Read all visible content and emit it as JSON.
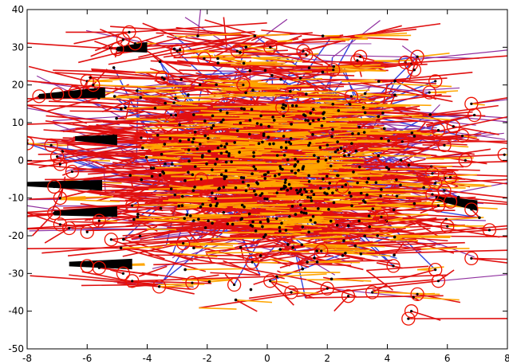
{
  "chart_data": {
    "type": "scatter",
    "title": "",
    "xlabel": "",
    "ylabel": "",
    "xlim": [
      -8,
      8
    ],
    "ylim": [
      -50,
      40
    ],
    "x_ticks": [
      -8,
      -6,
      -4,
      -2,
      0,
      2,
      4,
      6,
      8
    ],
    "y_ticks": [
      -50,
      -40,
      -30,
      -20,
      -10,
      0,
      10,
      20,
      30,
      40
    ],
    "x_tick_labels": [
      "-8",
      "-6",
      "-4",
      "-2",
      "0",
      "2",
      "4",
      "6",
      "8"
    ],
    "y_tick_labels": [
      "-50",
      "-40",
      "-30",
      "-20",
      "-10",
      "0",
      "10",
      "20",
      "30",
      "40"
    ],
    "grid": false,
    "legend": "none",
    "colors": {
      "blue_lines": "#3344dd",
      "red_lines": "#e01010",
      "orange_arrows": "#ffa500",
      "purple_lines": "#9030a0",
      "markers": "#000000",
      "circles": "#ee1100"
    },
    "series": [
      {
        "role": "circled_points",
        "points": [
          [
            -4.6,
            34
          ],
          [
            -4.8,
            32
          ],
          [
            -5.0,
            29.5
          ],
          [
            -4.4,
            31
          ],
          [
            -3.0,
            29
          ],
          [
            -2.1,
            27
          ],
          [
            -1.0,
            29
          ],
          [
            0.1,
            30
          ],
          [
            1.2,
            29
          ],
          [
            1.3,
            28
          ],
          [
            3.1,
            27.5
          ],
          [
            3.0,
            26.5
          ],
          [
            4.6,
            26
          ],
          [
            4.8,
            25.5
          ],
          [
            5.0,
            27.5
          ],
          [
            4.9,
            24
          ],
          [
            -7.6,
            17
          ],
          [
            -7.0,
            17.5
          ],
          [
            -6.4,
            18
          ],
          [
            -6.0,
            21
          ],
          [
            -5.8,
            20
          ],
          [
            5.6,
            21
          ],
          [
            5.4,
            18
          ],
          [
            6.8,
            15
          ],
          [
            6.9,
            12
          ],
          [
            6.2,
            9
          ],
          [
            5.7,
            8
          ],
          [
            6.5,
            6.5
          ],
          [
            5.9,
            4
          ],
          [
            6.6,
            0
          ],
          [
            7.9,
            1.5
          ],
          [
            -8.0,
            4.5
          ],
          [
            -7.2,
            4
          ],
          [
            -7.0,
            1
          ],
          [
            -6.9,
            -1
          ],
          [
            -6.5,
            -3
          ],
          [
            -7.1,
            -7
          ],
          [
            -6.9,
            -10
          ],
          [
            -7.1,
            -14
          ],
          [
            -6.9,
            -17
          ],
          [
            -6.6,
            -18
          ],
          [
            -6.0,
            -19
          ],
          [
            -5.6,
            -16
          ],
          [
            -5.2,
            -21
          ],
          [
            -6.0,
            -28
          ],
          [
            -5.6,
            -28.5
          ],
          [
            -4.8,
            -30
          ],
          [
            -4.5,
            -32
          ],
          [
            -3.6,
            -33.5
          ],
          [
            -2.5,
            -32.5
          ],
          [
            -1.1,
            -33
          ],
          [
            0.1,
            -32
          ],
          [
            0.8,
            -35
          ],
          [
            2.0,
            -34
          ],
          [
            2.7,
            -36
          ],
          [
            3.5,
            -35
          ],
          [
            4.7,
            -42
          ],
          [
            4.8,
            -40
          ],
          [
            5.0,
            -35.5
          ],
          [
            5.6,
            -29
          ],
          [
            5.7,
            -32
          ],
          [
            6.8,
            -26
          ],
          [
            7.4,
            -18.5
          ],
          [
            6.0,
            -17.5
          ],
          [
            5.7,
            -12
          ],
          [
            5.5,
            -9
          ],
          [
            5.6,
            -6
          ],
          [
            6.1,
            -4.5
          ],
          [
            5.5,
            -3.5
          ],
          [
            5.9,
            -8
          ],
          [
            6.1,
            -11
          ],
          [
            6.8,
            -13
          ],
          [
            -0.8,
            20
          ],
          [
            2.8,
            17
          ],
          [
            -3.2,
            12
          ],
          [
            0.5,
            14
          ],
          [
            -4.2,
            6
          ],
          [
            4.5,
            5
          ],
          [
            -2.2,
            -5
          ],
          [
            2.5,
            -7
          ],
          [
            -4.5,
            -12
          ],
          [
            3.8,
            -15
          ],
          [
            -2.8,
            -22
          ],
          [
            1.8,
            -24
          ],
          [
            -0.5,
            -27
          ],
          [
            4.2,
            -28
          ],
          [
            -3.5,
            22
          ],
          [
            2.2,
            24
          ]
        ]
      }
    ]
  }
}
